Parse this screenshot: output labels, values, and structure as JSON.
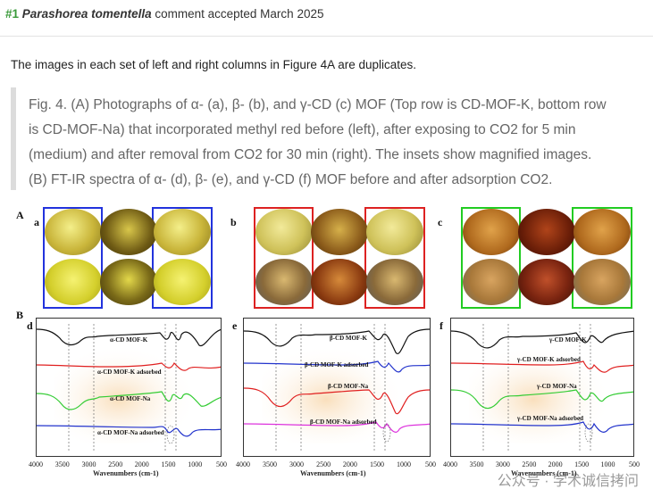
{
  "comment": {
    "number": "#1",
    "species": "Parashorea tomentella",
    "status_text": "comment accepted March 2025"
  },
  "statement": "The images in each set of left and right columns in Figure 4A are duplicates.",
  "caption_lines": [
    "Fig. 4. (A) Photographs of α- (a), β- (b), and γ-CD (c) MOF (Top row is CD-MOF-K, bottom row",
    "is CD-MOF-Na) that incorporated methyl red before (left), after exposing to CO2 for 5 min",
    "(medium) and after removal from CO2 for 30 min (right). The insets show magnified images.",
    "(B) FT-IR spectra of α- (d), β- (e), and γ-CD (f) MOF before and after adsorption CO2."
  ],
  "figure": {
    "section_a": "A",
    "section_b": "B",
    "photo_panels": [
      {
        "letter": "a",
        "frame_color": "#2233dd"
      },
      {
        "letter": "b",
        "frame_color": "#dd2222"
      },
      {
        "letter": "c",
        "frame_color": "#22cc22"
      }
    ],
    "spectrum_panels": [
      {
        "letter": "d",
        "labels": [
          "α-CD MOF-K",
          "α-CD MOF-K adsorbed",
          "α-CD MOF-Na",
          "α-CD MOF-Na adsorbed"
        ]
      },
      {
        "letter": "e",
        "labels": [
          "β-CD MOF-K",
          "β-CD MOF-K adsorbed",
          "β-CD MOF-Na",
          "β-CD MOF-Na adsorbed"
        ]
      },
      {
        "letter": "f",
        "labels": [
          "γ-CD MOF-K",
          "γ-CD MOF-K adsorbed",
          "γ-CD MOF-Na",
          "γ-CD MOF-Na adsorbed"
        ]
      }
    ],
    "trace_colors": [
      "#111111",
      "#e02020",
      "#33cc33",
      "#2233cc",
      "#dd33dd"
    ],
    "x_ticks": [
      "4000",
      "3500",
      "3000",
      "2500",
      "2000",
      "1500",
      "1000",
      "500"
    ],
    "x_label": "Wavenumbers (cm-1)"
  },
  "watermark": "公众号 · 学术诚信拷问"
}
